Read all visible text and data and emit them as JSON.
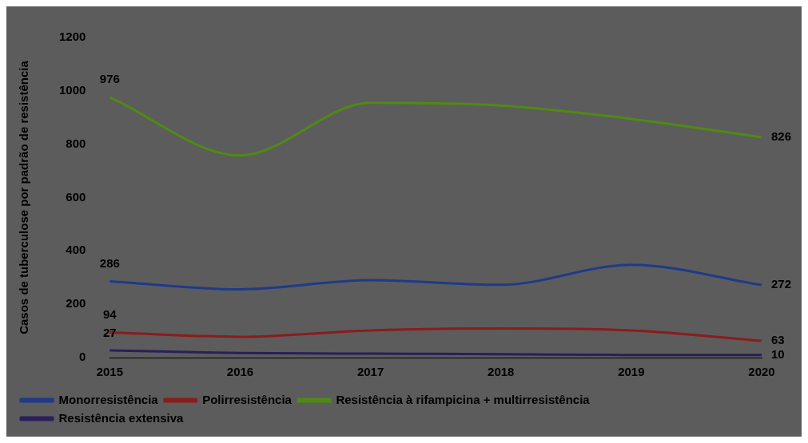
{
  "chart_data": {
    "type": "line",
    "ylabel": "Casos de tuberculose por padrão de resistência",
    "categories": [
      "2015",
      "2016",
      "2017",
      "2018",
      "2019",
      "2020"
    ],
    "ylim": [
      0,
      1200
    ],
    "yticks": [
      0,
      200,
      400,
      600,
      800,
      1000,
      1200
    ],
    "grid": false,
    "legend": "bottom",
    "marker": "none",
    "line_style": "solid",
    "series": [
      {
        "name": "Monorresistência",
        "color": "#1f3a8a",
        "values": [
          286,
          256,
          290,
          273,
          348,
          272
        ],
        "value_labels": [
          "286",
          null,
          null,
          null,
          null,
          "272"
        ]
      },
      {
        "name": "Polirresistência",
        "color": "#8b1c1c",
        "values": [
          94,
          78,
          102,
          109,
          102,
          63
        ],
        "value_labels": [
          "94",
          null,
          null,
          null,
          null,
          "63"
        ]
      },
      {
        "name": "Resistência à rifampicina + multirresistência",
        "color": "#4f8a12",
        "values": [
          976,
          758,
          955,
          945,
          895,
          826
        ],
        "value_labels": [
          "976",
          null,
          null,
          null,
          null,
          "826"
        ]
      },
      {
        "name": "Resistência extensiva",
        "color": "#2a1f5a",
        "values": [
          27,
          17,
          15,
          13,
          10,
          10
        ],
        "value_labels": [
          "27",
          null,
          null,
          null,
          null,
          "10"
        ]
      }
    ]
  }
}
